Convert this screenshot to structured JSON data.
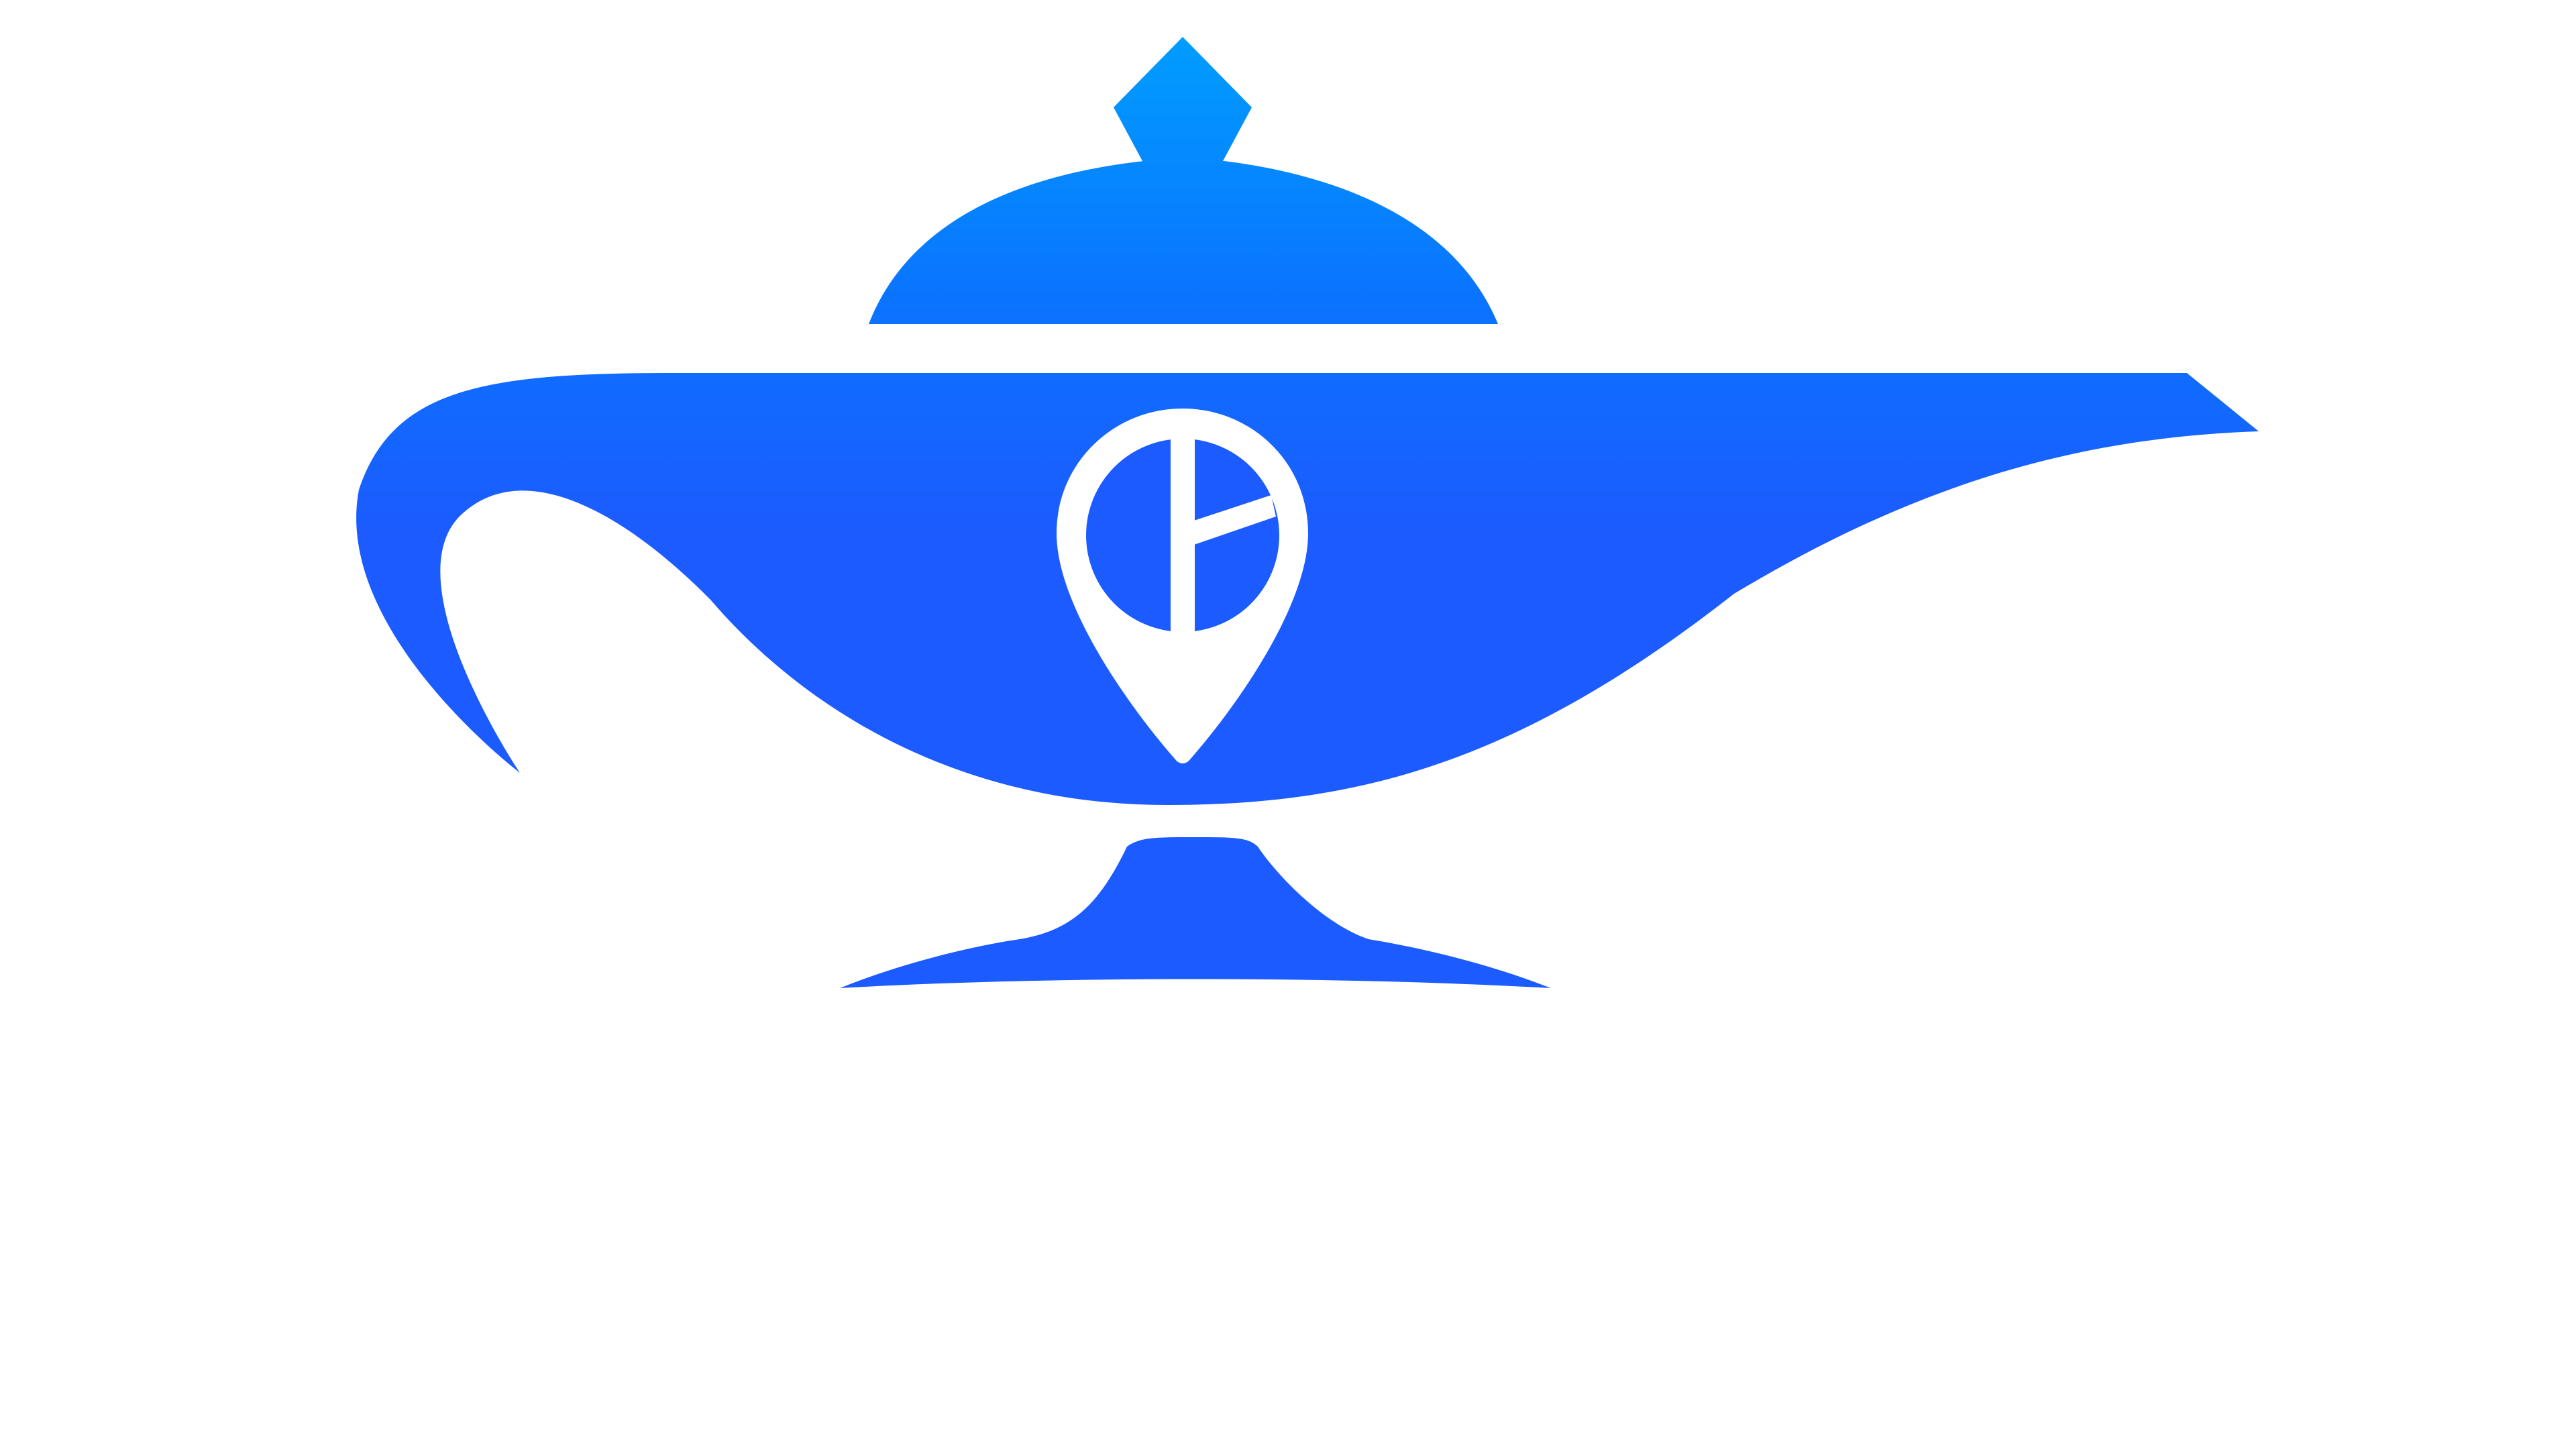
{
  "logo": {
    "name": "genie-lamp-logo",
    "colors": {
      "gradient_top": "#009DFF",
      "gradient_mid": "#0A74FF",
      "gradient_bottom": "#1C5BFF",
      "pin_color": "#FFFFFF",
      "background": "#FFFFFF"
    },
    "parts": [
      "lamp-lid-knob",
      "lamp-lid",
      "lamp-body",
      "lamp-spout",
      "lamp-handle",
      "location-pin-icon",
      "lamp-base"
    ]
  }
}
